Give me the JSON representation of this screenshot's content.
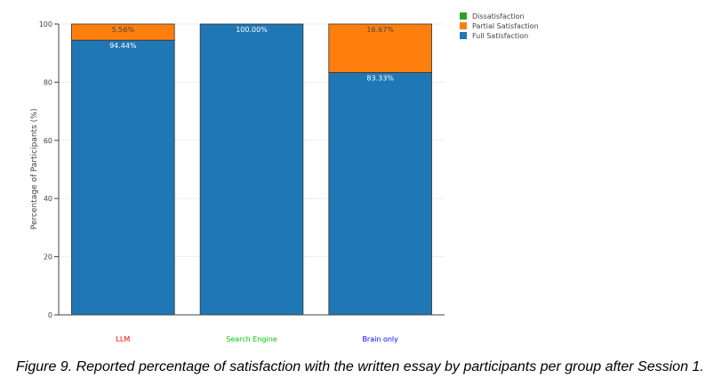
{
  "chart_data": {
    "type": "bar",
    "stacked": true,
    "categories": [
      "LLM",
      "Search Engine",
      "Brain only"
    ],
    "category_colors": [
      "#ff0000",
      "#00cc00",
      "#0000ff"
    ],
    "series": [
      {
        "name": "Full Satisfaction",
        "color": "#1f77b4",
        "label_color": "#ffffff",
        "values": [
          94.44,
          100.0,
          83.33
        ],
        "labels": [
          "94.44%",
          "100.00%",
          "83.33%"
        ]
      },
      {
        "name": "Partial Satisfaction",
        "color": "#ff7f0e",
        "label_color": "#444444",
        "values": [
          5.56,
          0,
          16.67
        ],
        "labels": [
          "5.56%",
          "",
          "16.67%"
        ]
      },
      {
        "name": "Dissatisfaction",
        "color": "#2ca02c",
        "label_color": "#444444",
        "values": [
          0,
          0,
          0
        ],
        "labels": [
          "",
          "",
          ""
        ]
      }
    ],
    "legend": [
      "Dissatisfaction",
      "Partial Satisfaction",
      "Full Satisfaction"
    ],
    "legend_colors": [
      "#2ca02c",
      "#ff7f0e",
      "#1f77b4"
    ],
    "legend_position": "top-right",
    "ylabel": "Percentage of Participants (%)",
    "xlabel": "",
    "ylim": [
      0,
      100
    ],
    "yticks": [
      0,
      20,
      40,
      60,
      80,
      100
    ],
    "grid": true
  },
  "caption": "Figure 9. Reported percentage of satisfaction with the written essay by participants per group after Session 1."
}
